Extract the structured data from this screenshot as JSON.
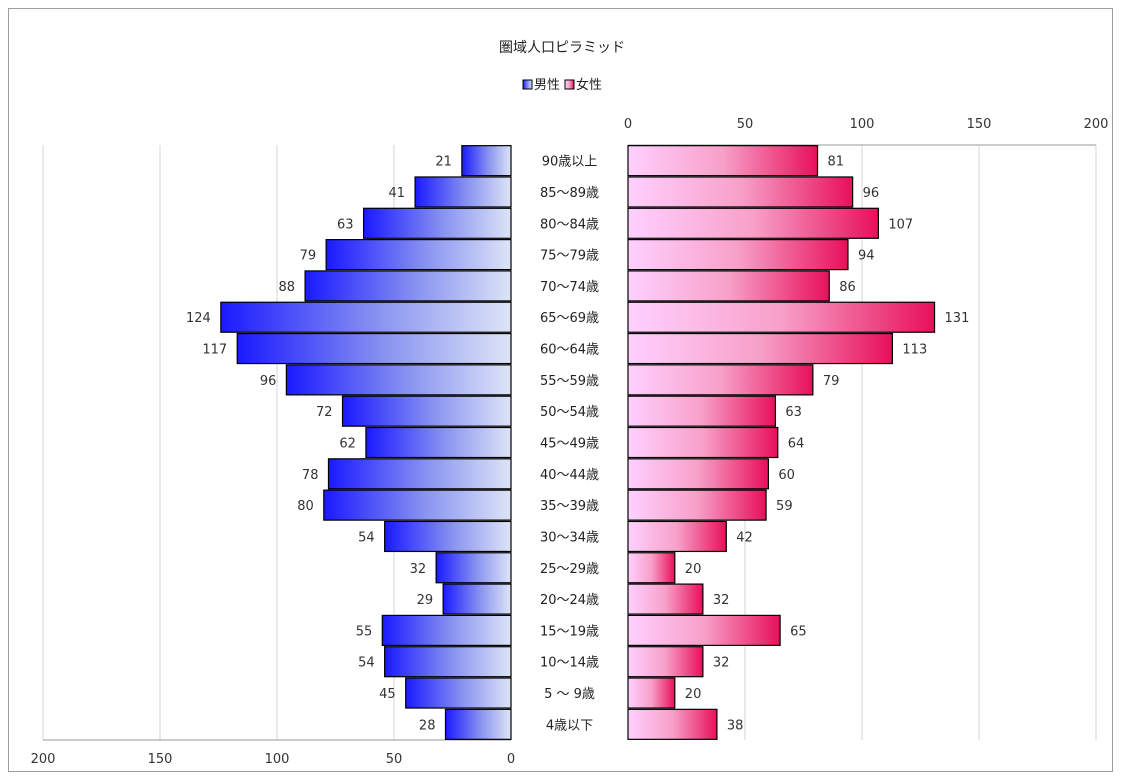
{
  "chart_data": {
    "type": "bar",
    "title": "圏域人口ピラミッド",
    "legend_position": "top-center",
    "grid": true,
    "categories": [
      "90歳以上",
      "85～89歳",
      "80～84歳",
      "75～79歳",
      "70～74歳",
      "65～69歳",
      "60～64歳",
      "55～59歳",
      "50～54歳",
      "45～49歳",
      "40～44歳",
      "35～39歳",
      "30～34歳",
      "25～29歳",
      "20～24歳",
      "15～19歳",
      "10～14歳",
      "5 ～ 9歳",
      "4歳以下"
    ],
    "series": [
      {
        "name": "男性",
        "color": "#1f2bff",
        "values": [
          21,
          41,
          63,
          79,
          88,
          124,
          117,
          96,
          72,
          62,
          78,
          80,
          54,
          32,
          29,
          55,
          54,
          45,
          28
        ]
      },
      {
        "name": "女性",
        "color": "#f0306a",
        "values": [
          81,
          96,
          107,
          94,
          86,
          131,
          113,
          79,
          63,
          64,
          60,
          59,
          42,
          20,
          32,
          65,
          32,
          20,
          38
        ]
      }
    ],
    "left_axis": {
      "ticks": [
        "200",
        "150",
        "100",
        "50",
        "0"
      ],
      "range": [
        0,
        200
      ]
    },
    "right_axis": {
      "ticks": [
        "0",
        "50",
        "100",
        "150",
        "200"
      ],
      "range": [
        0,
        200
      ]
    }
  }
}
